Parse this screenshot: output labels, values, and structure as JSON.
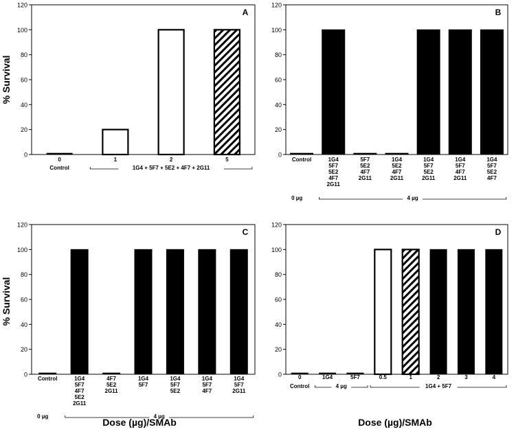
{
  "figure": {
    "ylabel": "% Survival",
    "xlabel": "Dose (µg)/SMAb"
  },
  "chart_data": [
    {
      "type": "bar",
      "panel": "A",
      "ylabel": "% Survival",
      "ylim": [
        0,
        120
      ],
      "yticks": [
        0,
        20,
        40,
        60,
        80,
        100,
        120
      ],
      "categories": [
        "0",
        "1",
        "2",
        "5"
      ],
      "category_labels": [
        [
          "0"
        ],
        [
          "1"
        ],
        [
          "2"
        ],
        [
          "5"
        ]
      ],
      "values": [
        1,
        20,
        100,
        100
      ],
      "fills": [
        "solid",
        "white",
        "white",
        "hatch"
      ],
      "groups": [
        {
          "label": "Control",
          "from": 0,
          "to": 0,
          "bracket": false
        },
        {
          "label": "1G4 + 5F7 + 5E2 + 4F7 + 2G11",
          "from": 1,
          "to": 3,
          "bracket": true
        }
      ]
    },
    {
      "type": "bar",
      "panel": "B",
      "ylim": [
        0,
        120
      ],
      "yticks": [
        0,
        20,
        40,
        60,
        80,
        100,
        120
      ],
      "categories": [
        "Control",
        "1G4 5F7 5E2 4F7 2G11",
        "5F7 5E2 4F7 2G11",
        "1G4 5E2 4F7 2G11",
        "1G4 5F7 5E2 2G11",
        "1G4 5F7 4F7 2G11",
        "1G4 5F7 5E2 4F7"
      ],
      "category_labels": [
        [
          "Control"
        ],
        [
          "1G4",
          "5F7",
          "5E2",
          "4F7",
          "2G11"
        ],
        [
          "5F7",
          "5E2",
          "4F7",
          "2G11"
        ],
        [
          "1G4",
          "5E2",
          "4F7",
          "2G11"
        ],
        [
          "1G4",
          "5F7",
          "5E2",
          "2G11"
        ],
        [
          "1G4",
          "5F7",
          "4F7",
          "2G11"
        ],
        [
          "1G4",
          "5F7",
          "5E2",
          "4F7"
        ]
      ],
      "values": [
        1,
        100,
        1,
        1,
        100,
        100,
        100
      ],
      "fills": [
        "solid",
        "solid",
        "solid",
        "solid",
        "solid",
        "solid",
        "solid"
      ],
      "groups": [
        {
          "label": "0 µg",
          "from": 0,
          "to": 0,
          "bracket": false
        },
        {
          "label": "4 µg",
          "from": 1,
          "to": 6,
          "bracket": true
        }
      ]
    },
    {
      "type": "bar",
      "panel": "C",
      "ylabel": "% Survival",
      "xlabel": "Dose (µg)/SMAb",
      "ylim": [
        0,
        120
      ],
      "yticks": [
        0,
        20,
        40,
        60,
        80,
        100,
        120
      ],
      "categories": [
        "Control",
        "1G4 5F7 4F7 5E2 2G11",
        "4F7 5E2 2G11",
        "1G4 5F7",
        "1G4 5F7 5E2",
        "1G4 5F7 4F7",
        "1G4 5F7 2G11"
      ],
      "category_labels": [
        [
          "Control"
        ],
        [
          "1G4",
          "5F7",
          "4F7",
          "5E2",
          "2G11"
        ],
        [
          "4F7",
          "5E2",
          "2G11"
        ],
        [
          "1G4",
          "5F7"
        ],
        [
          "1G4",
          "5F7",
          "5E2"
        ],
        [
          "1G4",
          "5F7",
          "4F7"
        ],
        [
          "1G4",
          "5F7",
          "2G11"
        ]
      ],
      "values": [
        1,
        100,
        1,
        100,
        100,
        100,
        100
      ],
      "fills": [
        "solid",
        "solid",
        "solid",
        "solid",
        "solid",
        "solid",
        "solid"
      ],
      "groups": [
        {
          "label": "0 µg",
          "from": 0,
          "to": 0,
          "bracket": false
        },
        {
          "label": "4 µg",
          "from": 1,
          "to": 6,
          "bracket": true
        }
      ]
    },
    {
      "type": "bar",
      "panel": "D",
      "xlabel": "Dose (µg)/SMAb",
      "ylim": [
        0,
        120
      ],
      "yticks": [
        0,
        20,
        40,
        60,
        80,
        100,
        120
      ],
      "categories": [
        "0",
        "1G4",
        "5F7",
        "0.5",
        "1",
        "2",
        "3",
        "4"
      ],
      "category_labels": [
        [
          "0"
        ],
        [
          "1G4"
        ],
        [
          "5F7"
        ],
        [
          "0.5"
        ],
        [
          "1"
        ],
        [
          "2"
        ],
        [
          "3"
        ],
        [
          "4"
        ]
      ],
      "values": [
        1,
        1,
        1,
        100,
        100,
        100,
        100,
        100
      ],
      "fills": [
        "solid",
        "solid",
        "solid",
        "white",
        "hatch",
        "solid",
        "solid",
        "solid"
      ],
      "groups": [
        {
          "label": "Control",
          "from": 0,
          "to": 0,
          "bracket": false
        },
        {
          "label": "4 µg",
          "from": 1,
          "to": 2,
          "bracket": true
        },
        {
          "label": "1G4 + 5F7",
          "from": 3,
          "to": 7,
          "bracket": true
        }
      ]
    }
  ]
}
